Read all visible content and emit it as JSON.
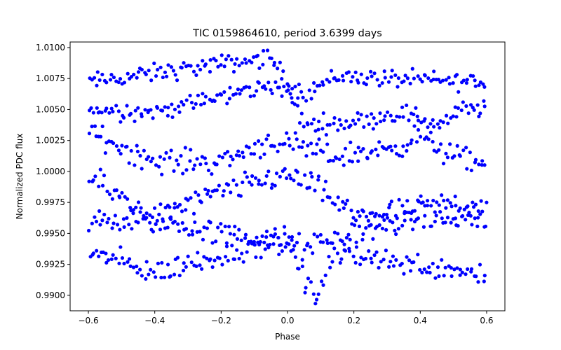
{
  "chart_data": {
    "type": "scatter",
    "title": "TIC 0159864610, period 3.6399 days",
    "xlabel": "Phase",
    "ylabel": "Normalized PDC flux",
    "xlim": [
      -0.655,
      0.655
    ],
    "ylim": [
      0.98875,
      1.01045
    ],
    "xticks": [
      -0.6,
      -0.4,
      -0.2,
      0.0,
      0.2,
      0.4,
      0.6
    ],
    "xtick_labels": [
      "−0.6",
      "−0.4",
      "−0.2",
      "0.0",
      "0.2",
      "0.4",
      "0.6"
    ],
    "yticks": [
      0.99,
      0.9925,
      0.995,
      0.9975,
      1.0,
      1.0025,
      1.005,
      1.0075,
      1.01
    ],
    "ytick_labels": [
      "0.9900",
      "0.9925",
      "0.9950",
      "0.9975",
      "1.0000",
      "1.0025",
      "1.0050",
      "1.0075",
      "1.0100"
    ],
    "grid": false,
    "marker_color": "#0000ff",
    "x_range": [
      -0.6,
      0.6
    ],
    "point_count_per_band": 180,
    "bands": [
      {
        "knots_x": [
          -0.6,
          -0.05,
          0.0,
          0.05,
          0.15,
          0.3,
          0.5,
          0.6
        ],
        "knots_y": [
          1.0072,
          1.0092,
          1.0071,
          1.0063,
          1.0077,
          1.0075,
          1.0073,
          1.0072
        ],
        "scatter": 0.0006
      },
      {
        "knots_x": [
          -0.6,
          -0.4,
          -0.2,
          -0.05,
          0.0,
          0.05,
          0.2,
          0.35,
          0.45,
          0.55,
          0.6
        ],
        "knots_y": [
          1.005,
          1.0048,
          1.006,
          1.007,
          1.0065,
          1.0038,
          1.004,
          1.0048,
          1.0038,
          1.0052,
          1.005
        ],
        "scatter": 0.0006
      },
      {
        "knots_x": [
          -0.6,
          -0.4,
          -0.2,
          -0.05,
          0.05,
          0.15,
          0.3,
          0.4,
          0.5,
          0.6
        ],
        "knots_y": [
          1.0032,
          1.0008,
          1.0008,
          1.0025,
          1.0018,
          1.0012,
          1.0018,
          1.0028,
          1.0012,
          1.0005
        ],
        "scatter": 0.0008
      },
      {
        "knots_x": [
          -0.6,
          -0.4,
          -0.2,
          0.0,
          0.08,
          0.2,
          0.35,
          0.5,
          0.6
        ],
        "knots_y": [
          0.9995,
          0.9963,
          0.9983,
          0.9998,
          0.9988,
          0.9965,
          0.9968,
          0.9975,
          0.9972
        ],
        "scatter": 0.0008
      },
      {
        "knots_x": [
          -0.6,
          -0.4,
          -0.2,
          0.0,
          0.05,
          0.2,
          0.4,
          0.6
        ],
        "knots_y": [
          0.9958,
          0.996,
          0.995,
          0.9943,
          0.9938,
          0.995,
          0.9962,
          0.996
        ],
        "scatter": 0.0008
      },
      {
        "knots_x": [
          -0.6,
          -0.4,
          -0.2,
          0.0,
          0.06,
          0.09,
          0.12,
          0.2,
          0.35,
          0.5,
          0.6
        ],
        "knots_y": [
          0.9935,
          0.9918,
          0.9932,
          0.9945,
          0.9905,
          0.9898,
          0.9925,
          0.9935,
          0.9925,
          0.9922,
          0.9918
        ],
        "scatter": 0.0008
      }
    ]
  }
}
